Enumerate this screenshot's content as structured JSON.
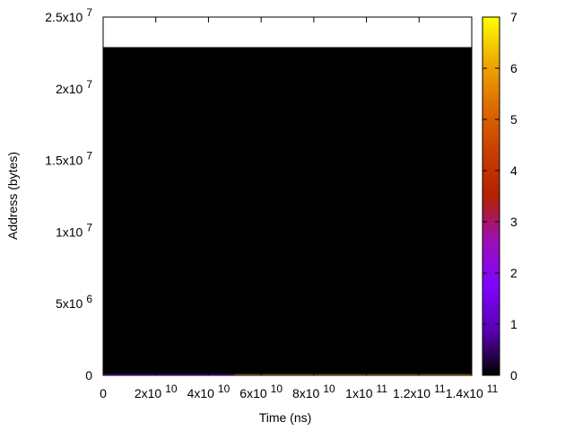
{
  "chart_data": {
    "type": "heatmap",
    "x_label": "Time (ns)",
    "y_label": "Address (bytes)",
    "xlim": [
      0,
      140000000000
    ],
    "ylim": [
      0,
      25000000
    ],
    "xticks": [
      0,
      {
        "value": 20000000000,
        "label": "2x10",
        "sup": "10"
      },
      {
        "value": 40000000000,
        "label": "4x10",
        "sup": "10"
      },
      {
        "value": 60000000000,
        "label": "6x10",
        "sup": "10"
      },
      {
        "value": 80000000000,
        "label": "8x10",
        "sup": "10"
      },
      {
        "value": 100000000000,
        "label": "1x10",
        "sup": "11"
      },
      {
        "value": 120000000000,
        "label": "1.2x10",
        "sup": "11"
      },
      {
        "value": 140000000000,
        "label": "1.4x10",
        "sup": "11"
      }
    ],
    "yticks": [
      0,
      {
        "value": 5000000,
        "label": "5x10",
        "sup": "6"
      },
      {
        "value": 10000000,
        "label": "1x10",
        "sup": "7"
      },
      {
        "value": 15000000,
        "label": "1.5x10",
        "sup": "7"
      },
      {
        "value": 20000000,
        "label": "2x10",
        "sup": "7"
      },
      {
        "value": 25000000,
        "label": "2.5x10",
        "sup": "7"
      }
    ],
    "cblim": [
      0,
      7
    ],
    "cbticks": [
      0,
      1,
      2,
      3,
      4,
      5,
      6,
      7
    ],
    "palette": [
      "#000000",
      "#5a00b4",
      "#8004ff",
      "#9c0eb4",
      "#b42000",
      "#c93e00",
      "#dd6c00",
      "#eeab00",
      "#ffff00"
    ],
    "cells": [
      {
        "x0": 0,
        "x1": 140000000000,
        "y0": 0,
        "y1": 22900000,
        "value": 0
      },
      {
        "x0": 0,
        "x1": 50000000000,
        "y0": 0,
        "y1": 80000,
        "value": 2
      },
      {
        "x0": 50000000000,
        "x1": 140000000000,
        "y0": 0,
        "y1": 80000,
        "value": 5.5
      }
    ]
  }
}
